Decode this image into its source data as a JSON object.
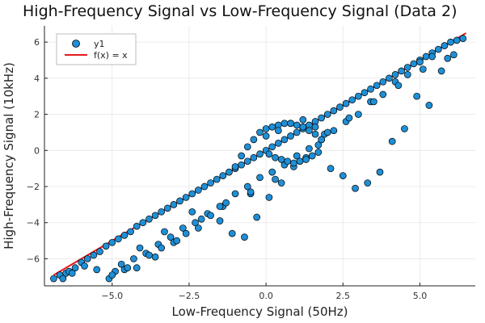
{
  "chart_data": {
    "type": "scatter",
    "title": "High-Frequency Signal vs Low-Frequency Signal (Data 2)",
    "xlabel": "Low-Frequency Signal (50Hz)",
    "ylabel": "High-Frequency Signal (10kHz)",
    "xlim": [
      -7.2,
      6.8
    ],
    "ylim": [
      -7.5,
      6.9
    ],
    "xticks": [
      -5.0,
      -2.5,
      0.0,
      2.5,
      5.0
    ],
    "xtick_labels": [
      "−5.0",
      "−2.5",
      "0.0",
      "2.5",
      "5.0"
    ],
    "yticks": [
      -6,
      -4,
      -2,
      0,
      2,
      4,
      6
    ],
    "ytick_labels": [
      "−6",
      "−4",
      "−2",
      "0",
      "2",
      "4",
      "6"
    ],
    "grid": true,
    "legend_position": "top-left",
    "colors": {
      "scatter": "#1f8fd6",
      "line": "#e31a1c",
      "marker_edge": "#000000"
    },
    "series": [
      {
        "name": "y1",
        "kind": "scatter",
        "x": [
          -6.9,
          -6.7,
          -6.5,
          -6.4,
          -6.2,
          -6.0,
          -5.8,
          -5.6,
          -5.4,
          -5.2,
          -5.0,
          -4.8,
          -4.6,
          -4.4,
          -4.2,
          -4.0,
          -3.8,
          -3.6,
          -3.4,
          -3.2,
          -3.0,
          -2.8,
          -2.6,
          -2.4,
          -2.2,
          -2.0,
          -1.8,
          -1.6,
          -1.4,
          -1.2,
          -1.0,
          -0.8,
          -0.6,
          -0.4,
          -0.2,
          0.0,
          0.2,
          0.4,
          0.6,
          0.8,
          1.0,
          1.2,
          1.4,
          1.6,
          1.8,
          2.0,
          2.2,
          2.4,
          2.6,
          2.8,
          3.0,
          3.2,
          3.4,
          3.6,
          3.8,
          4.0,
          4.2,
          4.4,
          4.6,
          4.8,
          5.0,
          5.2,
          5.4,
          5.6,
          5.8,
          6.0,
          6.2,
          6.4,
          -6.6,
          -6.3,
          -5.9,
          -5.5,
          -5.1,
          -4.9,
          -4.7,
          -4.3,
          -3.9,
          -3.5,
          -3.1,
          -2.7,
          -2.3,
          -1.9,
          -1.5,
          -1.1,
          -0.7,
          -0.3,
          0.1,
          0.5,
          0.9,
          1.3,
          1.7,
          2.1,
          2.5,
          2.9,
          3.3,
          3.7,
          4.1,
          4.5,
          4.9,
          5.3,
          5.7,
          6.1,
          -5.0,
          -4.6,
          -4.2,
          -3.8,
          -3.4,
          -3.0,
          -2.6,
          -2.2,
          -1.8,
          -1.4,
          -1.0,
          -0.6,
          -0.2,
          0.2,
          0.6,
          1.0,
          1.4,
          1.8,
          2.2,
          2.6,
          3.0,
          3.4,
          3.8,
          4.2,
          4.6,
          5.0,
          5.4,
          -4.5,
          -3.6,
          -2.9,
          -2.1,
          -1.3,
          -0.5,
          0.3,
          1.1,
          1.9,
          2.7,
          3.5,
          4.3,
          5.1,
          5.9,
          -1.0,
          -0.8,
          -0.6,
          -0.4,
          -0.2,
          0.0,
          0.2,
          0.4,
          0.6,
          0.8,
          1.0,
          1.2,
          1.4,
          1.6,
          1.8,
          0.1,
          0.3,
          0.5,
          0.7,
          0.9,
          1.1,
          1.3,
          1.5,
          1.7,
          0.0,
          0.4,
          0.8,
          1.2,
          1.6,
          2.0,
          -0.5,
          -1.5,
          -2.4,
          -3.3,
          -4.1
        ],
        "y": [
          -7.1,
          -6.9,
          -6.8,
          -6.7,
          -6.5,
          -6.2,
          -6.0,
          -5.8,
          -5.6,
          -5.3,
          -5.1,
          -4.9,
          -4.7,
          -4.5,
          -4.2,
          -4.0,
          -3.8,
          -3.6,
          -3.4,
          -3.2,
          -3.0,
          -2.8,
          -2.6,
          -2.4,
          -2.2,
          -2.0,
          -1.8,
          -1.6,
          -1.4,
          -1.2,
          -1.0,
          -0.8,
          -0.6,
          -0.4,
          -0.2,
          0.0,
          0.2,
          0.4,
          0.6,
          0.8,
          1.0,
          1.2,
          1.4,
          1.6,
          1.8,
          2.0,
          2.2,
          2.4,
          2.6,
          2.8,
          3.0,
          3.2,
          3.4,
          3.6,
          3.8,
          4.0,
          4.2,
          4.4,
          4.6,
          4.8,
          5.0,
          5.2,
          5.4,
          5.6,
          5.8,
          6.0,
          6.1,
          6.2,
          -7.1,
          -6.8,
          -6.4,
          -6.6,
          -7.1,
          -6.7,
          -6.3,
          -6.0,
          -5.7,
          -5.2,
          -4.8,
          -4.3,
          -4.0,
          -3.5,
          -3.9,
          -4.6,
          -4.8,
          -3.7,
          -2.6,
          -1.8,
          -0.9,
          -0.4,
          0.3,
          -1.0,
          -1.4,
          -2.1,
          -1.8,
          -1.2,
          0.5,
          1.2,
          3.0,
          2.5,
          4.4,
          5.3,
          -6.9,
          -6.6,
          -6.5,
          -5.8,
          -5.4,
          -5.1,
          -4.6,
          -4.3,
          -3.6,
          -3.1,
          -2.4,
          -2.0,
          -1.5,
          -1.2,
          -0.8,
          -0.3,
          0.1,
          0.6,
          1.1,
          1.6,
          2.0,
          2.7,
          3.1,
          3.8,
          4.2,
          4.9,
          5.2,
          -6.5,
          -5.9,
          -5.0,
          -3.8,
          -2.9,
          -2.4,
          -1.6,
          -0.6,
          0.9,
          1.8,
          2.7,
          3.6,
          4.5,
          5.1,
          -0.9,
          -0.3,
          0.2,
          0.6,
          1.0,
          1.2,
          1.3,
          1.4,
          1.5,
          1.5,
          1.4,
          1.3,
          1.1,
          0.9,
          0.6,
          -0.2,
          -0.4,
          -0.5,
          -0.6,
          -0.7,
          -0.6,
          -0.5,
          -0.3,
          -0.1,
          0.8,
          1.1,
          1.5,
          1.7,
          1.3,
          1.0,
          -2.3,
          -3.1,
          -3.4,
          -4.5,
          -5.4
        ]
      },
      {
        "name": "f(x) = x",
        "kind": "line",
        "x": [
          -6.9,
          6.5
        ],
        "y": [
          -6.9,
          6.5
        ]
      }
    ]
  }
}
